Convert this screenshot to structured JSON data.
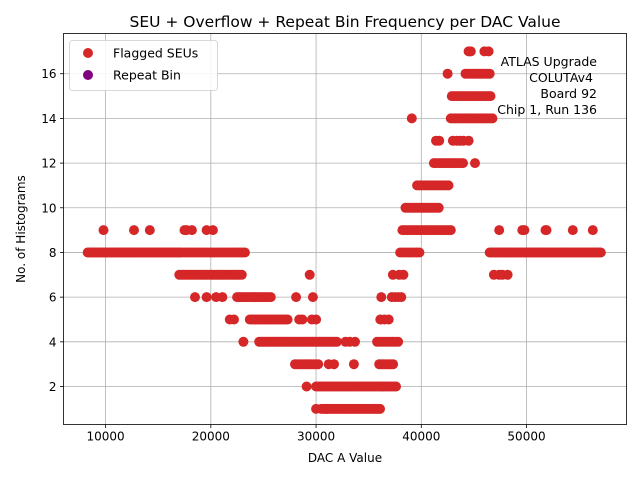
{
  "chart_data": {
    "type": "scatter",
    "title": "SEU + Overflow + Repeat Bin Frequency per DAC Value",
    "xlabel": "DAC A Value",
    "ylabel": "No. of Histograms",
    "xlim": [
      6000,
      59500
    ],
    "ylim": [
      0.3,
      17.8
    ],
    "xticks": [
      10000,
      20000,
      30000,
      40000,
      50000
    ],
    "yticks": [
      2,
      4,
      6,
      8,
      10,
      12,
      14,
      16
    ],
    "grid": true,
    "legend_position": "top-left",
    "annotation_lines": [
      "ATLAS Upgrade",
      "COLUTAv4",
      "Board 92",
      "Chip 1, Run 136"
    ],
    "series": [
      {
        "name": "Flagged SEUs",
        "color": "#d62728",
        "segments": [
          {
            "x0": 8300,
            "x1": 17000,
            "y": 8,
            "step": 150
          },
          {
            "x0": 17000,
            "x1": 23300,
            "y": 8,
            "step": 240
          },
          {
            "x0": 46500,
            "x1": 57200,
            "y": 8,
            "step": 160
          },
          {
            "x0": 38000,
            "x1": 40000,
            "y": 8,
            "step": 260
          },
          {
            "x0": 17000,
            "x1": 23000,
            "y": 7,
            "step": 220
          },
          {
            "x0": 22500,
            "x1": 25800,
            "y": 6,
            "step": 200
          },
          {
            "x0": 23700,
            "x1": 27300,
            "y": 5,
            "step": 200
          },
          {
            "x0": 24600,
            "x1": 32000,
            "y": 4,
            "step": 180
          },
          {
            "x0": 28000,
            "x1": 30400,
            "y": 3,
            "step": 220
          },
          {
            "x0": 30000,
            "x1": 37600,
            "y": 2,
            "step": 200
          },
          {
            "x0": 30500,
            "x1": 36200,
            "y": 1,
            "step": 180
          },
          {
            "x0": 38200,
            "x1": 42800,
            "y": 9,
            "step": 230
          },
          {
            "x0": 38500,
            "x1": 41800,
            "y": 10,
            "step": 210
          },
          {
            "x0": 39600,
            "x1": 42800,
            "y": 11,
            "step": 230
          },
          {
            "x0": 41200,
            "x1": 44000,
            "y": 12,
            "step": 230
          },
          {
            "x0": 42800,
            "x1": 46800,
            "y": 14,
            "step": 220
          },
          {
            "x0": 42900,
            "x1": 46800,
            "y": 15,
            "step": 230
          },
          {
            "x0": 44200,
            "x1": 46500,
            "y": 16,
            "step": 230
          },
          {
            "x0": 36000,
            "x1": 37400,
            "y": 3,
            "step": 220
          },
          {
            "x0": 35800,
            "x1": 38000,
            "y": 4,
            "step": 250
          },
          {
            "x0": 37200,
            "x1": 38200,
            "y": 6,
            "step": 300
          }
        ],
        "points": [
          [
            9800,
            9
          ],
          [
            12700,
            9
          ],
          [
            14200,
            9
          ],
          [
            17500,
            9
          ],
          [
            17700,
            9
          ],
          [
            18200,
            9
          ],
          [
            19600,
            9
          ],
          [
            20200,
            9
          ],
          [
            18500,
            6
          ],
          [
            19600,
            6
          ],
          [
            20500,
            6
          ],
          [
            21100,
            6
          ],
          [
            21800,
            5
          ],
          [
            22200,
            5
          ],
          [
            23100,
            4
          ],
          [
            28100,
            6
          ],
          [
            29400,
            7
          ],
          [
            29700,
            6
          ],
          [
            29100,
            2
          ],
          [
            28400,
            5
          ],
          [
            28700,
            5
          ],
          [
            29600,
            5
          ],
          [
            30000,
            5
          ],
          [
            30000,
            1
          ],
          [
            31000,
            1
          ],
          [
            33600,
            3
          ],
          [
            33200,
            4
          ],
          [
            33700,
            4
          ],
          [
            32800,
            4
          ],
          [
            31200,
            3
          ],
          [
            31700,
            3
          ],
          [
            36200,
            6
          ],
          [
            36100,
            5
          ],
          [
            36900,
            5
          ],
          [
            36500,
            5
          ],
          [
            37300,
            7
          ],
          [
            37900,
            7
          ],
          [
            38300,
            7
          ],
          [
            39100,
            14
          ],
          [
            41400,
            13
          ],
          [
            41700,
            13
          ],
          [
            43000,
            13
          ],
          [
            43400,
            13
          ],
          [
            43700,
            13
          ],
          [
            44000,
            13
          ],
          [
            44500,
            13
          ],
          [
            42500,
            16
          ],
          [
            45100,
            12
          ],
          [
            44500,
            17
          ],
          [
            44700,
            17
          ],
          [
            46000,
            17
          ],
          [
            46400,
            17
          ],
          [
            46900,
            7
          ],
          [
            47400,
            7
          ],
          [
            47700,
            7
          ],
          [
            48200,
            7
          ],
          [
            47400,
            9
          ],
          [
            49600,
            9
          ],
          [
            49800,
            9
          ],
          [
            51800,
            9
          ],
          [
            51900,
            9
          ],
          [
            54400,
            9
          ],
          [
            56300,
            9
          ]
        ]
      },
      {
        "name": "Repeat Bin",
        "color": "#800080",
        "segments": [],
        "points": []
      }
    ]
  }
}
